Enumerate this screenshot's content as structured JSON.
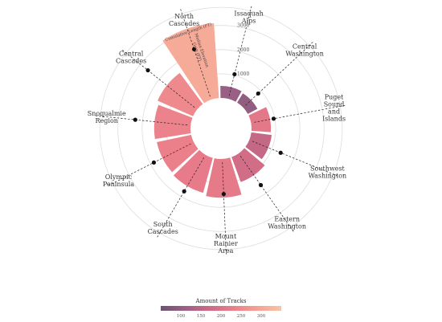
{
  "chart_data": {
    "type": "radial-bar",
    "title": "",
    "radial_axis": {
      "ticks": [
        1000,
        2000,
        3000
      ],
      "labels": [
        "1000",
        "2000",
        "3000"
      ]
    },
    "categories": [
      "Issaquah Alps",
      "Central Washington",
      "Puget Sound and Islands",
      "Southwest Washington",
      "Eastern Washington",
      "Mount Rainier Area",
      "South Cascades",
      "Olympic Peninsula",
      "Snoqualmie Region",
      "Central Cascades",
      "North Cascades"
    ],
    "label_lines": [
      [
        "Issaquah",
        "Alps"
      ],
      [
        "Central",
        "Washington"
      ],
      [
        "Puget",
        "Sound",
        "and",
        "Islands"
      ],
      [
        "Southwest",
        "Washington"
      ],
      [
        "Eastern",
        "Washington"
      ],
      [
        "Mount",
        "Rainier",
        "Area"
      ],
      [
        "South",
        "Cascades"
      ],
      [
        "Olympic",
        "Peninsula"
      ],
      [
        "Snoqualmie",
        "Region"
      ],
      [
        "Central",
        "Cascades"
      ],
      [
        "North",
        "Cascades"
      ]
    ],
    "cumulative_length": [
      500,
      450,
      800,
      850,
      1100,
      1600,
      1500,
      1450,
      1500,
      1600,
      3100
    ],
    "elevation_gain": [
      1050,
      850,
      950,
      1400,
      1600,
      1450,
      1750,
      1850,
      2300,
      2600,
      2200
    ],
    "amount_of_tracks": [
      110,
      100,
      215,
      160,
      180,
      220,
      225,
      235,
      240,
      250,
      305
    ],
    "highlighted": "North Cascades",
    "annotation_lines": [
      "Cumulative Length (FT)",
      "Median Elevation",
      "Gain (FT)"
    ],
    "legend": {
      "title": "Amount of Tracks",
      "range": [
        50,
        350
      ],
      "ticks": [
        100,
        150,
        200,
        250,
        300
      ],
      "tick_labels": [
        "100",
        "150",
        "200",
        "250",
        "300"
      ],
      "colors": [
        "#6c5470",
        "#9a5f84",
        "#cc6a86",
        "#ea7d8a",
        "#f5a194",
        "#f8c4a4"
      ]
    }
  }
}
